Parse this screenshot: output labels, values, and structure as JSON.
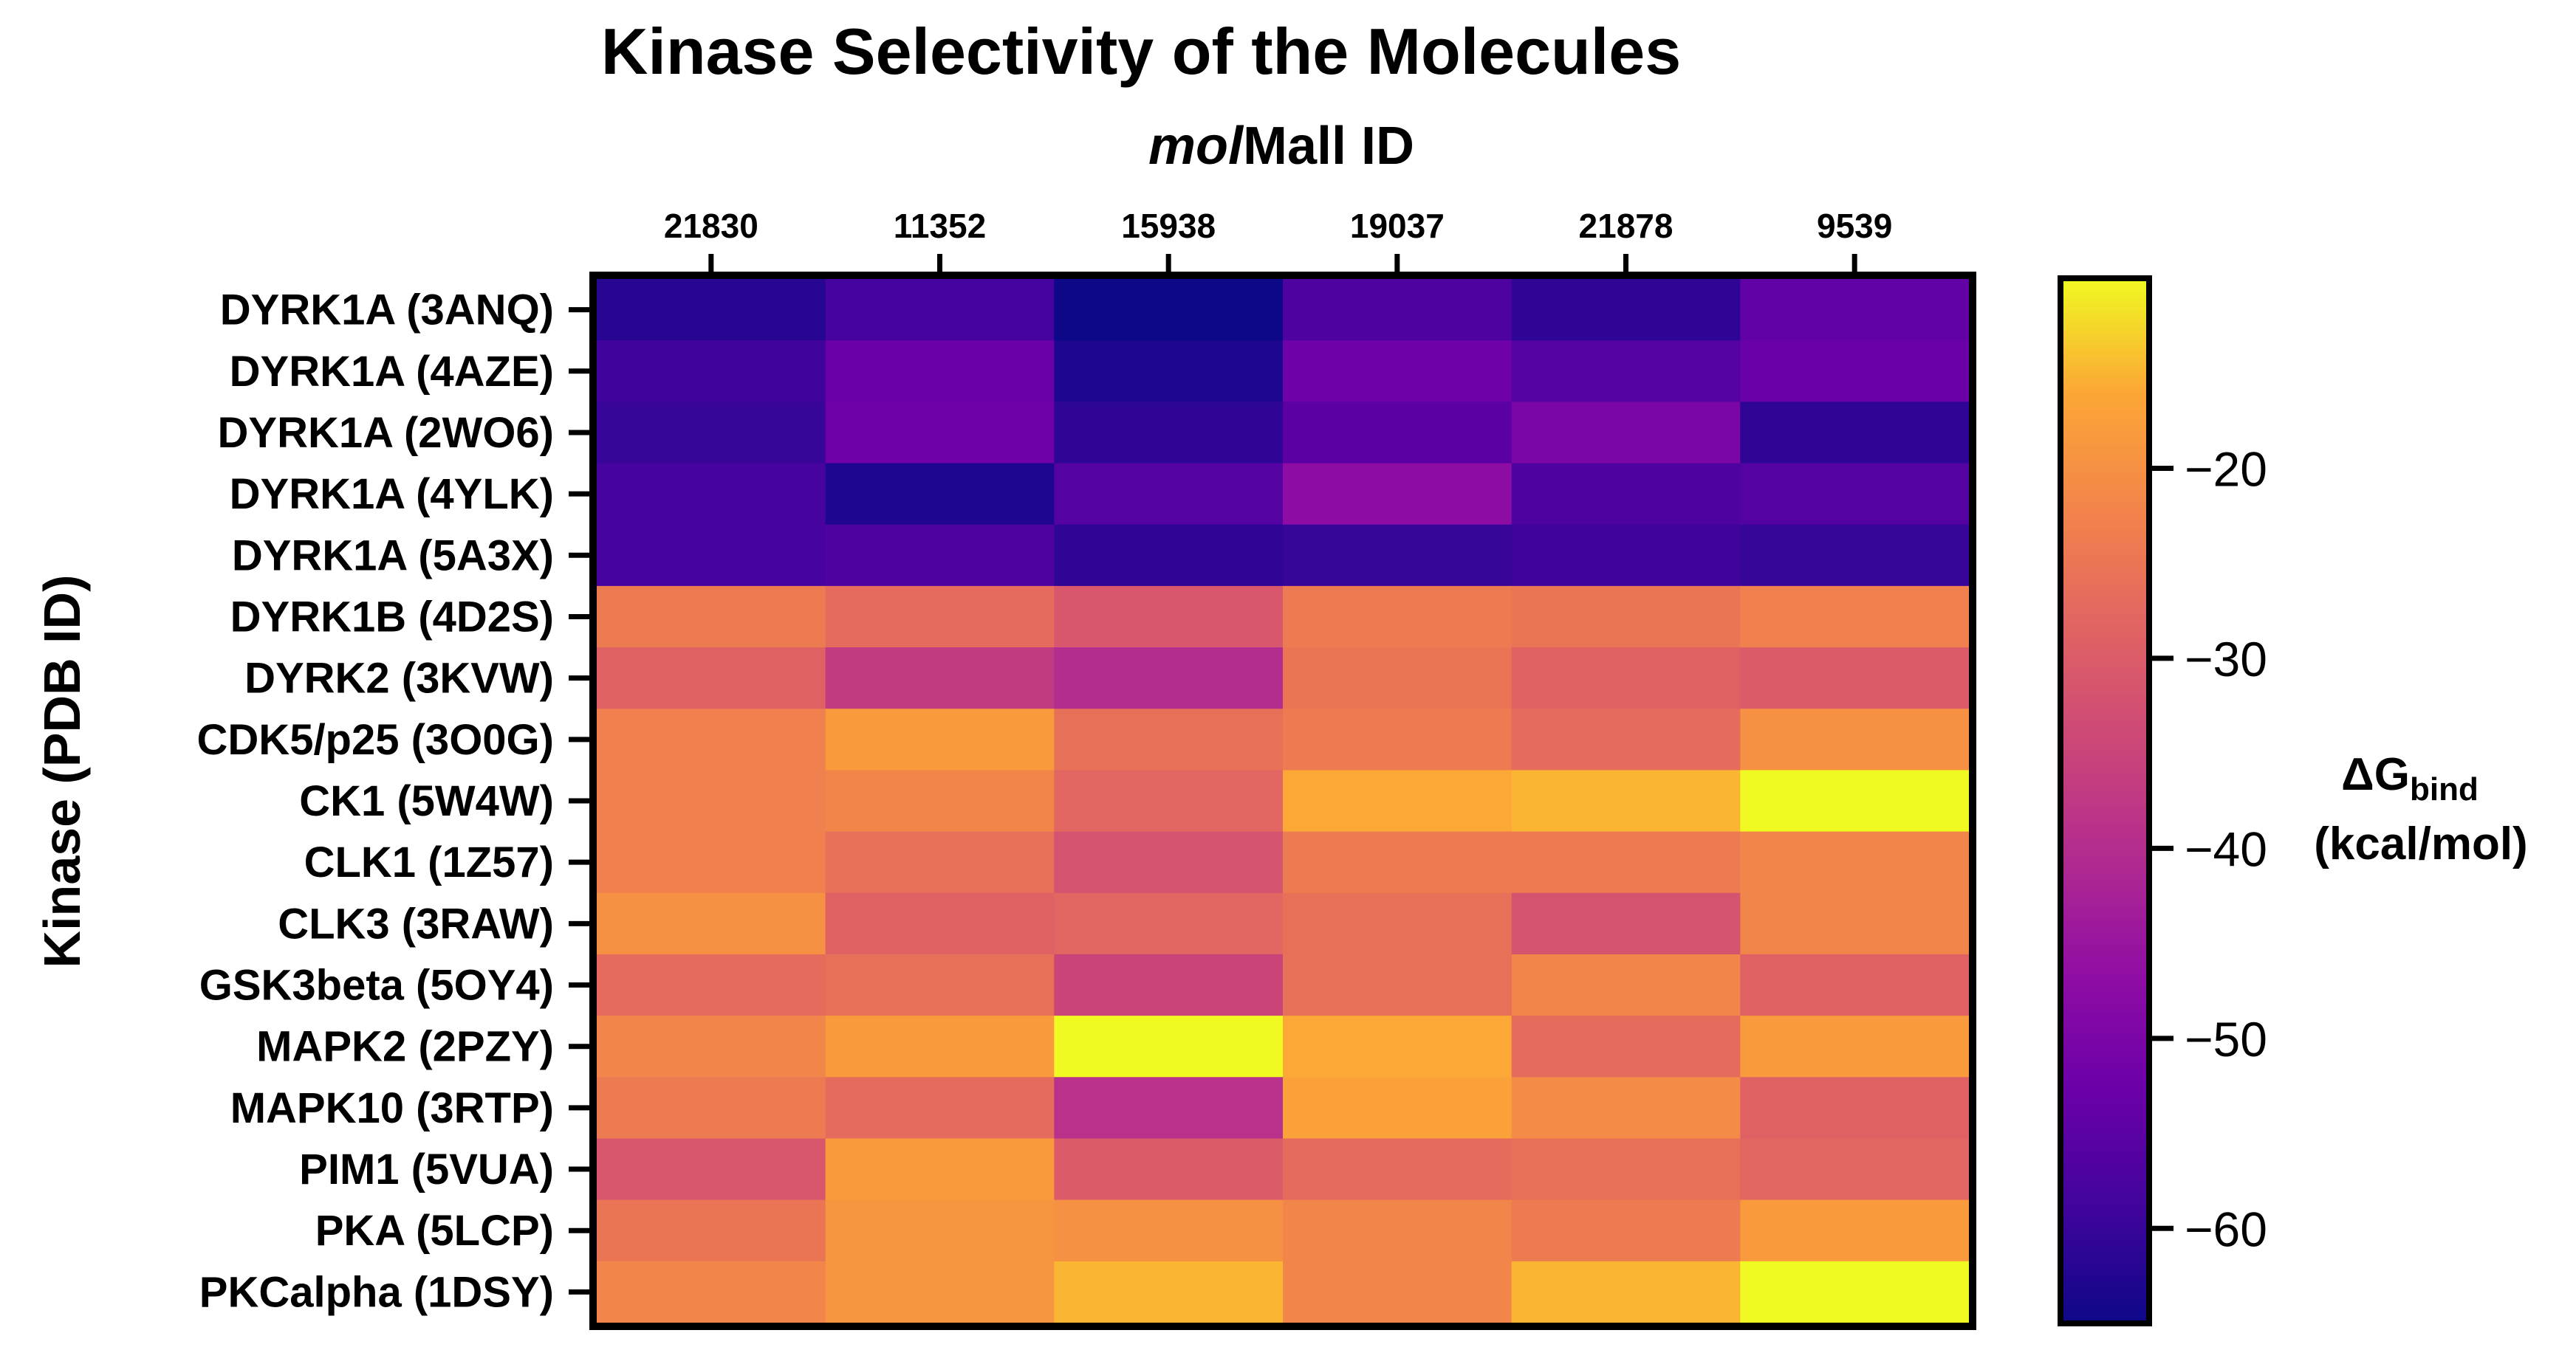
{
  "chart_data": {
    "type": "heatmap",
    "title": "Kinase Selectivity of the Molecules",
    "xlabel_italic": "mol",
    "xlabel_rest": "Mall ID",
    "ylabel": "Kinase (PDB ID)",
    "columns": [
      "21830",
      "11352",
      "15938",
      "19037",
      "21878",
      "9539"
    ],
    "rows": [
      "DYRK1A (3ANQ)",
      "DYRK1A (4AZE)",
      "DYRK1A (2WO6)",
      "DYRK1A (4YLK)",
      "DYRK1A (5A3X)",
      "DYRK1B (4D2S)",
      "DYRK2 (3KVW)",
      "CDK5/p25 (3O0G)",
      "CK1 (5W4W)",
      "CLK1 (1Z57)",
      "CLK3 (3RAW)",
      "GSK3beta (5OY4)",
      "MAPK2 (2PZY)",
      "MAPK10 (3RTP)",
      "PIM1 (5VUA)",
      "PKA (5LCP)",
      "PKCalpha (1DSY)"
    ],
    "values": [
      [
        -62,
        -58,
        -65,
        -57,
        -61,
        -54
      ],
      [
        -59,
        -53,
        -63,
        -52,
        -56,
        -53
      ],
      [
        -60,
        -52,
        -61,
        -55,
        -50,
        -61
      ],
      [
        -58,
        -63,
        -56,
        -47,
        -57,
        -56
      ],
      [
        -58,
        -57,
        -61,
        -60,
        -59,
        -60
      ],
      [
        -24,
        -27,
        -31,
        -24,
        -25,
        -23
      ],
      [
        -29,
        -37,
        -40,
        -25,
        -29,
        -30
      ],
      [
        -23,
        -18,
        -26,
        -24,
        -27,
        -20
      ],
      [
        -23,
        -22,
        -28,
        -16,
        -15,
        -6
      ],
      [
        -23,
        -26,
        -32,
        -24,
        -24,
        -22
      ],
      [
        -20,
        -29,
        -28,
        -26,
        -32,
        -22
      ],
      [
        -27,
        -26,
        -35,
        -26,
        -22,
        -29
      ],
      [
        -22,
        -18,
        -8,
        -16,
        -27,
        -18
      ],
      [
        -24,
        -27,
        -39,
        -17,
        -21,
        -29
      ],
      [
        -31,
        -18,
        -30,
        -27,
        -26,
        -28
      ],
      [
        -25,
        -19,
        -20,
        -22,
        -24,
        -18
      ],
      [
        -22,
        -19,
        -15,
        -22,
        -15,
        -6
      ]
    ],
    "colorbar": {
      "label": "ΔG",
      "label_subscript": "bind",
      "units": "(kcal/mol)",
      "min": -65,
      "max": -10,
      "ticks": [
        "−20",
        "−30",
        "−40",
        "−50",
        "−60"
      ],
      "tick_values": [
        -20,
        -30,
        -40,
        -50,
        -60
      ],
      "colormap": "plasma"
    }
  }
}
